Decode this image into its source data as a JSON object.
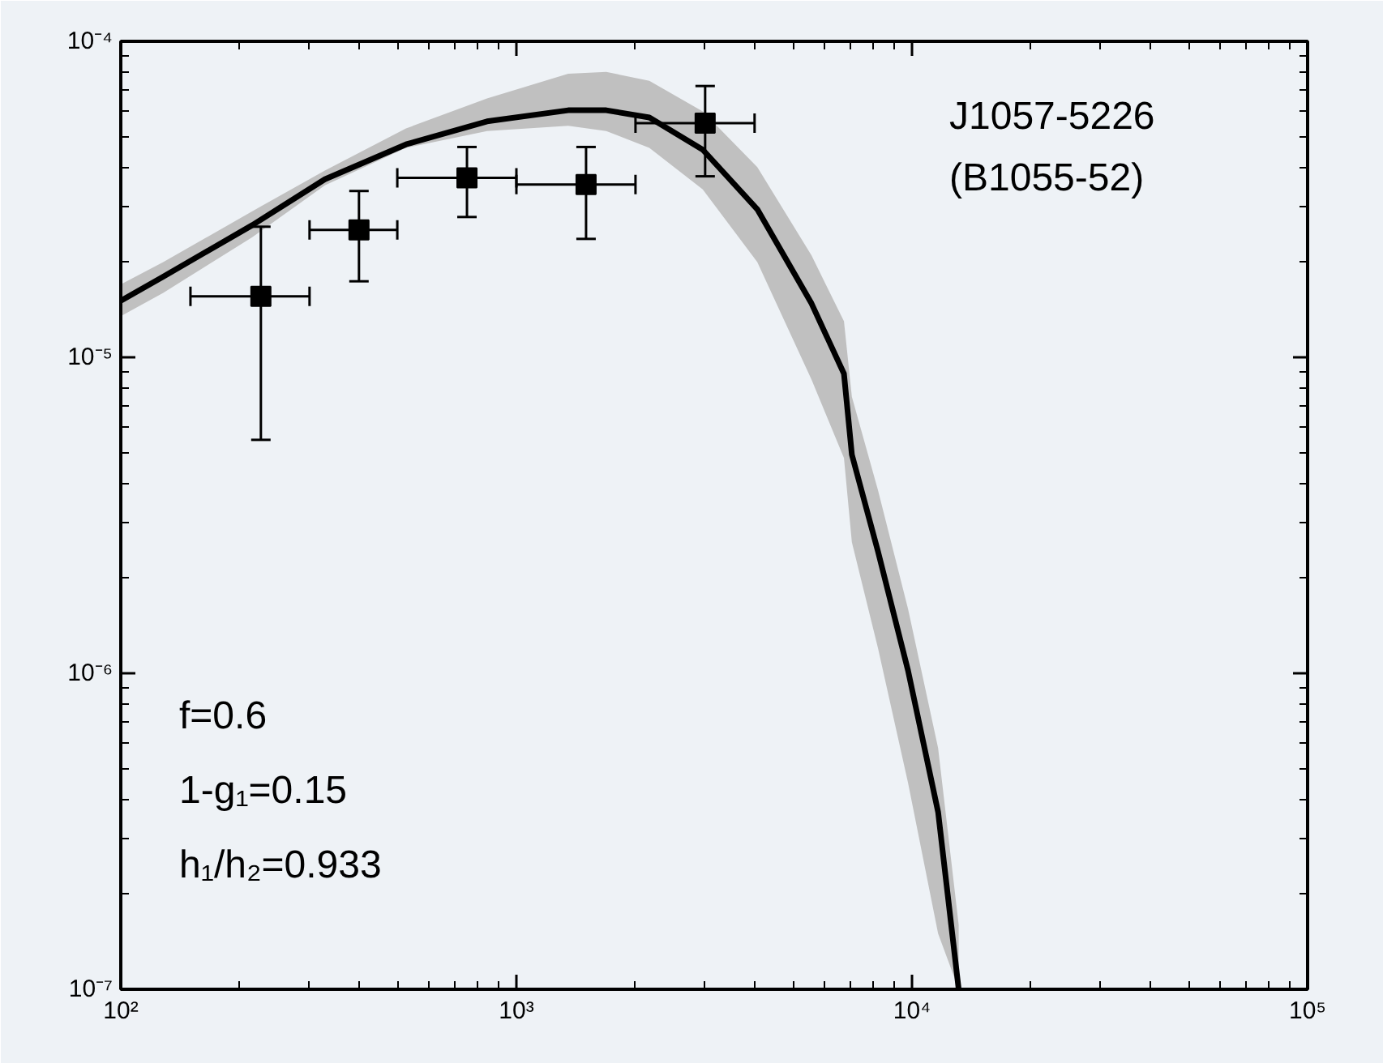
{
  "chart_data": {
    "type": "scatter",
    "log": "xy",
    "grid": false,
    "xlim": [
      100,
      100000
    ],
    "ylim": [
      1e-07,
      0.0001
    ],
    "xticks": [
      {
        "value": 100,
        "label": "10²"
      },
      {
        "value": 1000,
        "label": "10³"
      },
      {
        "value": 10000,
        "label": "10⁴"
      },
      {
        "value": 100000,
        "label": "10⁵"
      }
    ],
    "yticks": [
      {
        "value": 1e-07,
        "label": "10⁻⁷"
      },
      {
        "value": 1e-06,
        "label": "10⁻⁶"
      },
      {
        "value": 1e-05,
        "label": "10⁻⁵"
      },
      {
        "value": 0.0001,
        "label": "10⁻⁴"
      }
    ],
    "annotations": [
      "J1057-5226",
      "(B1055-52)",
      "f=0.6",
      "1-g₁=0.15",
      "h₁/h₂=0.933"
    ],
    "series": [
      {
        "type": "line",
        "color": "#000000",
        "marker": "none",
        "line_style": "solid",
        "x": [
          100,
          128,
          215,
          328,
          526,
          843,
          1352,
          1687,
          2168,
          2958,
          4064,
          5572,
          6730,
          7047,
          8204,
          9772,
          11641,
          13122
        ],
        "values": [
          1.51e-05,
          1.8e-05,
          2.62e-05,
          3.66e-05,
          4.72e-05,
          5.58e-05,
          6.05e-05,
          6.05e-05,
          5.74e-05,
          4.54e-05,
          2.94e-05,
          1.48e-05,
          8.87e-06,
          4.92e-06,
          2.43e-06,
          1.02e-06,
          3.64e-07,
          1e-07
        ],
        "upper": [
          1.7e-05,
          2e-05,
          2.9e-05,
          3.9e-05,
          5.3e-05,
          6.6e-05,
          7.9e-05,
          8e-05,
          7.5e-05,
          6e-05,
          4e-05,
          2.1e-05,
          1.3e-05,
          7.5e-06,
          3.8e-06,
          1.6e-06,
          5.8e-07,
          1.6e-07
        ],
        "lower": [
          1.35e-05,
          1.6e-05,
          2.4e-05,
          3.5e-05,
          4.6e-05,
          5.2e-05,
          5.4e-05,
          5.2e-05,
          4.6e-05,
          3.4e-05,
          2e-05,
          8.5e-06,
          4.8e-06,
          2.6e-06,
          1.2e-06,
          4.5e-07,
          1.5e-07,
          1e-07
        ]
      },
      {
        "color": "#000000",
        "marker": "square",
        "x": [
          226,
          400,
          750,
          1500,
          3000
        ],
        "values": [
          1.56e-05,
          2.53e-05,
          3.7e-05,
          3.52e-05,
          5.51e-05
        ],
        "errors": [
          [
            5.48e-06,
            2.59e-05
          ],
          [
            1.74e-05,
            3.36e-05
          ],
          [
            2.78e-05,
            4.63e-05
          ],
          [
            2.37e-05,
            4.63e-05
          ],
          [
            3.74e-05,
            7.22e-05
          ]
        ],
        "xerrors": [
          [
            150,
            300
          ],
          [
            300,
            500
          ],
          [
            500,
            1000
          ],
          [
            1000,
            2000
          ],
          [
            2000,
            4000
          ]
        ]
      }
    ]
  }
}
